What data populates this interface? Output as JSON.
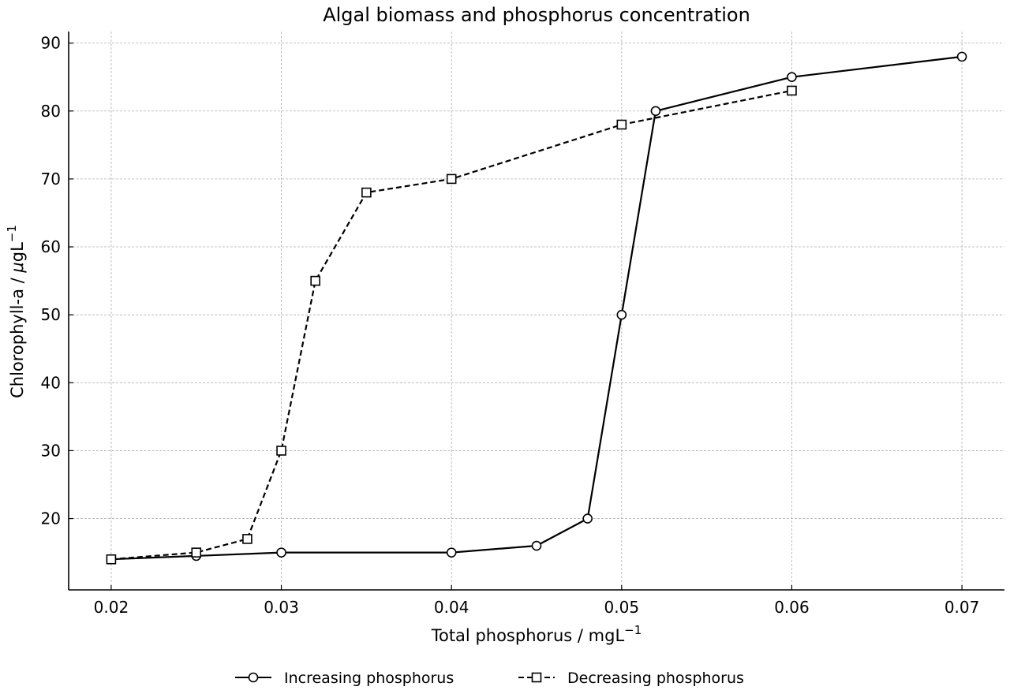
{
  "chart_data": {
    "type": "line",
    "title": "Algal biomass and phosphorus concentration",
    "xlabel_main": "Total phosphorus / mgL",
    "xlabel_sup": "−1",
    "ylabel_main": "Chlorophyll-a / ",
    "ylabel_mu": "μ",
    "ylabel_unit": "gL",
    "ylabel_sup": "−1",
    "xlim": [
      0.0175,
      0.0725
    ],
    "ylim": [
      9.5,
      91.7
    ],
    "xticks": [
      0.02,
      0.03,
      0.04,
      0.05,
      0.06,
      0.07
    ],
    "xtick_labels": [
      "0.02",
      "0.03",
      "0.04",
      "0.05",
      "0.06",
      "0.07"
    ],
    "yticks": [
      20,
      30,
      40,
      50,
      60,
      70,
      80,
      90
    ],
    "ytick_labels": [
      "20",
      "30",
      "40",
      "50",
      "60",
      "70",
      "80",
      "90"
    ],
    "grid": true,
    "legend_position": "bottom-center",
    "series": [
      {
        "name": "Increasing phosphorus",
        "marker": "circle",
        "line_style": "solid",
        "color": "#000000",
        "x": [
          0.02,
          0.025,
          0.03,
          0.04,
          0.045,
          0.048,
          0.05,
          0.052,
          0.06,
          0.07
        ],
        "y": [
          14,
          14.5,
          15,
          15,
          16,
          20,
          50,
          80,
          85,
          88
        ]
      },
      {
        "name": "Decreasing phosphorus",
        "marker": "square",
        "line_style": "dashed",
        "color": "#000000",
        "x": [
          0.02,
          0.025,
          0.028,
          0.03,
          0.032,
          0.035,
          0.04,
          0.05,
          0.06
        ],
        "y": [
          14,
          15,
          17,
          30,
          55,
          68,
          70,
          78,
          83
        ]
      }
    ]
  }
}
